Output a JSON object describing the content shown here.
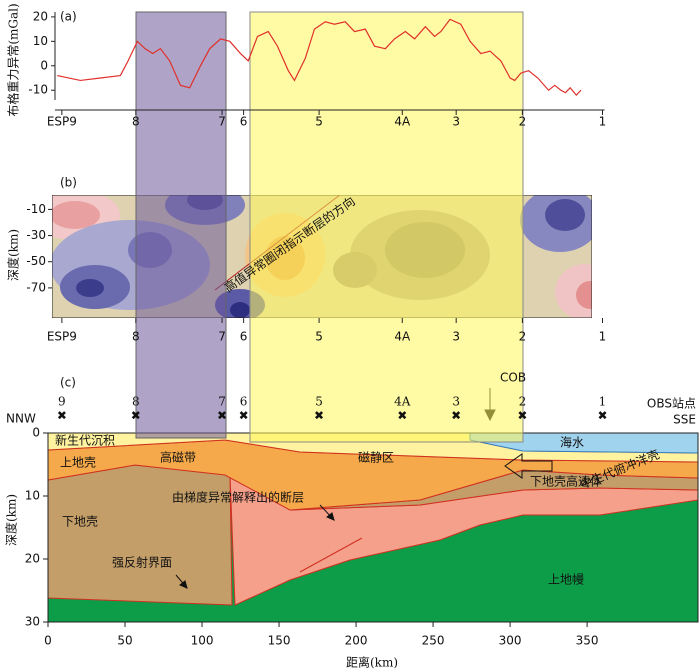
{
  "chart_data": [
    {
      "type": "line",
      "title": "(a)",
      "ylabel": "布格重力异常(mGal)",
      "color": "#e0302a",
      "x": [
        6,
        21,
        34,
        47,
        52,
        58,
        63,
        68,
        73,
        79,
        86,
        92,
        99,
        105,
        112,
        118,
        125,
        130,
        136,
        143,
        149,
        156,
        160,
        167,
        173,
        180,
        186,
        193,
        199,
        206,
        212,
        219,
        225,
        232,
        238,
        245,
        251,
        255,
        261,
        268,
        274,
        281,
        287,
        294,
        300,
        303,
        307,
        312,
        318,
        325,
        329,
        333,
        336,
        339,
        343,
        346
      ],
      "values": [
        -4,
        -6,
        -5,
        -4,
        2,
        10,
        7,
        5,
        7,
        2,
        -8,
        -9,
        0,
        7,
        11,
        10,
        5,
        2,
        12,
        14,
        8,
        -2,
        -6,
        3,
        15,
        18,
        17,
        18,
        14,
        15,
        8,
        7,
        11,
        14,
        11,
        16,
        12,
        14,
        19,
        17,
        10,
        5,
        6,
        2,
        -5,
        -6,
        -3,
        -2,
        -5,
        -10,
        -8,
        -10,
        -11,
        -9,
        -12,
        -10
      ],
      "xlim": [
        0,
        422
      ],
      "ylim": [
        -14,
        22
      ],
      "yticks": [
        20,
        10,
        0,
        -10
      ],
      "station_labels": [
        "ESP9",
        "8",
        "7",
        "6",
        "5",
        "4A",
        "3",
        "2",
        "1"
      ],
      "station_x": [
        9,
        57,
        113,
        127,
        176,
        230,
        265,
        308,
        360
      ]
    },
    {
      "type": "contour",
      "title": "(b)",
      "ylabel": "深度(km)",
      "ylim": [
        -93,
        1
      ],
      "yticks": [
        -10,
        -30,
        -50,
        -70
      ],
      "annotation": "高值异常圈闭指示断层的方向"
    },
    {
      "type": "section",
      "title": "(c)",
      "xlabel": "距离(km)",
      "ylabel": "深度(km)",
      "xlim": [
        0,
        422
      ],
      "xticks": [
        0,
        50,
        100,
        150,
        200,
        250,
        300,
        350
      ],
      "ylim": [
        0,
        30
      ],
      "yticks": [
        0,
        10,
        20,
        30
      ],
      "station_labels": [
        "9",
        "8",
        "7",
        "6",
        "5",
        "4A",
        "3",
        "2",
        "1"
      ],
      "labels": {
        "nnw": "NNW",
        "sse": "SSE",
        "obs": "OBS站点",
        "cob": "COB",
        "sediment": "新生代沉积",
        "sea": "海水",
        "upper_crust": "上地壳",
        "high_mag": "高磁带",
        "quiet_mag": "磁静区",
        "hv_body": "下地壳高速体",
        "fault": "由梯度异常解释出的断层",
        "lower_crust": "下地壳",
        "oceanic": "中生代俯冲洋壳",
        "reflector": "强反射界面",
        "mantle": "上地幔"
      }
    }
  ]
}
